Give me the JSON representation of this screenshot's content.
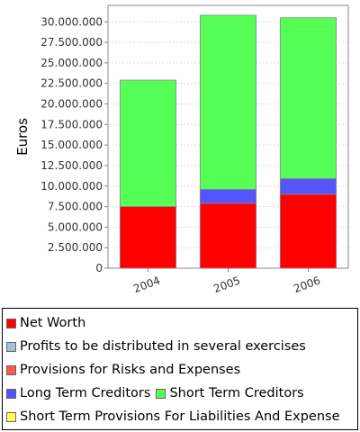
{
  "chart_data": {
    "type": "bar",
    "stacked": true,
    "categories": [
      "2004",
      "2005",
      "2006"
    ],
    "ylabel": "Euros",
    "xlabel": "",
    "ylim": [
      0,
      32000000
    ],
    "yticks": [
      "0",
      "2.500.000",
      "5.000.000",
      "7.500.000",
      "10.000.000",
      "12.500.000",
      "15.000.000",
      "17.500.000",
      "20.000.000",
      "22.500.000",
      "25.000.000",
      "27.500.000",
      "30.000.000"
    ],
    "grid": true,
    "legend_position": "bottom",
    "series": [
      {
        "name": "Net Worth",
        "color": "#ff0000",
        "values": [
          7500000,
          7900000,
          9000000
        ]
      },
      {
        "name": "Profits to be distributed in several exercises",
        "color": "#a0c0e0",
        "values": [
          0,
          0,
          0
        ]
      },
      {
        "name": "Provisions for Risks and Expenses",
        "color": "#ff5555",
        "values": [
          0,
          0,
          0
        ]
      },
      {
        "name": "Long Term Creditors",
        "color": "#5555ff",
        "values": [
          0,
          1700000,
          1900000
        ]
      },
      {
        "name": "Short Term Creditors",
        "color": "#55ff55",
        "values": [
          15400000,
          21200000,
          19600000
        ]
      },
      {
        "name": "Short Term Provisions For Liabilities And Expense",
        "color": "#ffff55",
        "values": [
          0,
          0,
          0
        ]
      }
    ]
  }
}
